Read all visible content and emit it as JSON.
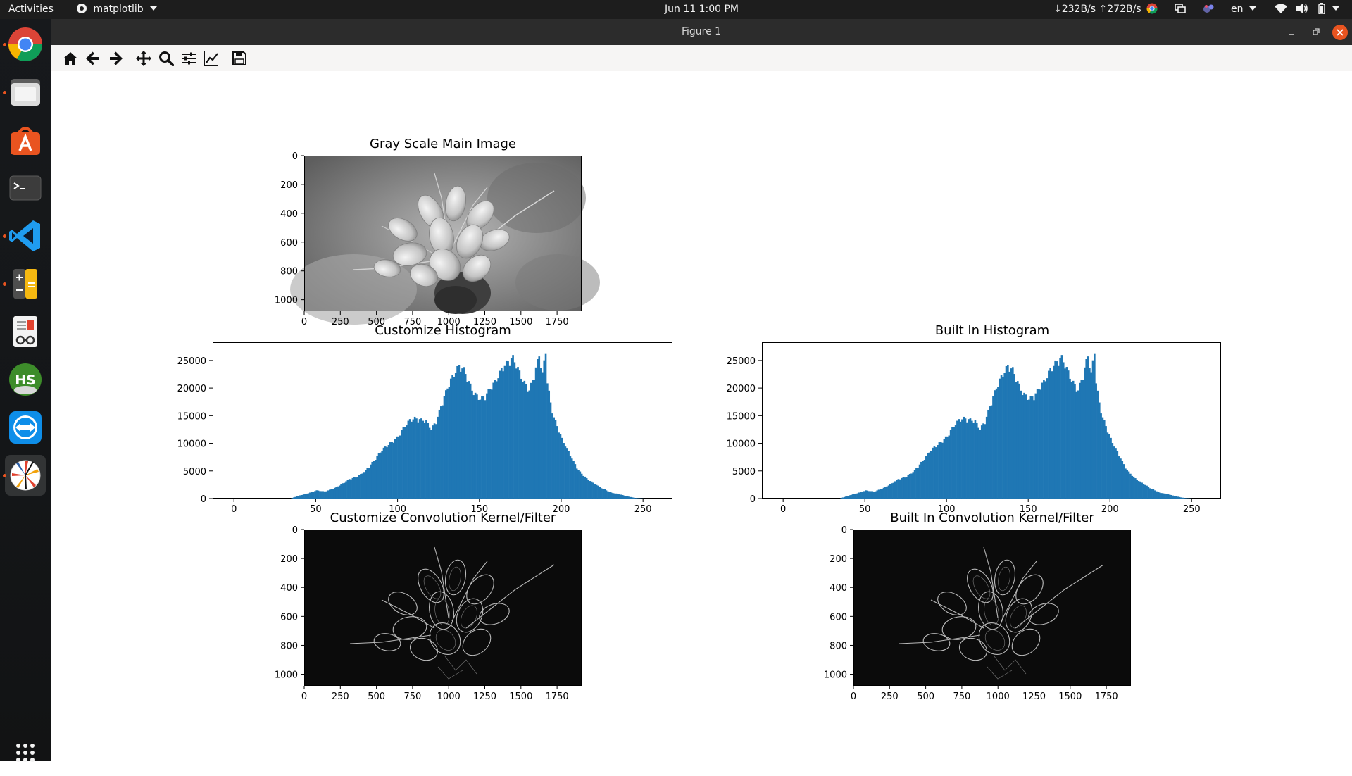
{
  "topbar": {
    "activities": "Activities",
    "app_menu": "matplotlib",
    "clock": "Jun 11  1:00 PM",
    "net_speed": "↓232B/s ↑272B/s",
    "language": "en"
  },
  "window": {
    "title": "Figure 1"
  },
  "toolbar": {
    "buttons": [
      "home-icon",
      "back-arrow-icon",
      "forward-arrow-icon",
      "pan-icon",
      "zoom-icon",
      "subplots-icon",
      "edit-axes-icon",
      "save-icon"
    ]
  },
  "dock": {
    "apps": [
      "Google Chrome",
      "Files",
      "Ubuntu Software",
      "Terminal",
      "Visual Studio Code",
      "Calculator",
      "Document Viewer",
      "HeidiSQL",
      "TeamViewer",
      "Python"
    ]
  },
  "colors": {
    "hist_bar": "#1f77b4",
    "topbar_bg": "#1d1d1d",
    "titlebar_bg": "#2c2c2c",
    "close_button": "#e95420"
  },
  "figure": {
    "main_title": "Gray Scale Main Image",
    "hist_custom_title": "Customize Histogram",
    "hist_builtin_title": "Built In Histogram",
    "conv_custom_title": "Customize Convolution Kernel/Filter",
    "conv_builtin_title": "Built In Convolution Kernel/Filter"
  },
  "chart_data": [
    {
      "type": "heatmap",
      "title": "Gray Scale Main Image",
      "x_ticks": [
        "0",
        "250",
        "500",
        "750",
        "1000",
        "1250",
        "1500",
        "1750"
      ],
      "y_ticks": [
        "0",
        "200",
        "400",
        "600",
        "800",
        "1000"
      ],
      "xlim": [
        0,
        1920
      ],
      "ylim": [
        1080,
        0
      ]
    },
    {
      "type": "bar",
      "title": "Customize Histogram",
      "x_ticks": [
        "0",
        "50",
        "100",
        "150",
        "200",
        "250"
      ],
      "y_ticks": [
        "0",
        "5000",
        "10000",
        "15000",
        "20000",
        "25000"
      ],
      "xlim": [
        -13,
        268
      ],
      "ylim": [
        0,
        28300
      ],
      "x": [
        35,
        40,
        45,
        50,
        55,
        60,
        65,
        70,
        75,
        80,
        85,
        90,
        95,
        100,
        103,
        107,
        110,
        113,
        117,
        120,
        123,
        126,
        130,
        133,
        137,
        140,
        143,
        146,
        150,
        153,
        156,
        160,
        163,
        166,
        170,
        173,
        176,
        180,
        183,
        186,
        188,
        190,
        191,
        193,
        195,
        200,
        205,
        210,
        215,
        220,
        225,
        230,
        235,
        240,
        245,
        250
      ],
      "values": [
        100,
        600,
        1000,
        1500,
        1300,
        1800,
        2600,
        3600,
        4000,
        5200,
        7000,
        9000,
        10200,
        11500,
        13000,
        14500,
        14800,
        14600,
        14300,
        12800,
        14200,
        17000,
        20500,
        22500,
        24500,
        23800,
        21500,
        19500,
        18400,
        18900,
        20300,
        22000,
        23800,
        25000,
        26000,
        24000,
        21800,
        20000,
        22800,
        26500,
        23000,
        27300,
        21500,
        17600,
        15000,
        11000,
        8000,
        5200,
        3700,
        2700,
        1800,
        1100,
        800,
        400,
        100,
        0
      ]
    },
    {
      "type": "bar",
      "title": "Built In Histogram",
      "x_ticks": [
        "0",
        "50",
        "100",
        "150",
        "200",
        "250"
      ],
      "y_ticks": [
        "0",
        "5000",
        "10000",
        "15000",
        "20000",
        "25000"
      ],
      "xlim": [
        -13,
        268
      ],
      "ylim": [
        0,
        28300
      ],
      "x": [
        35,
        40,
        45,
        50,
        55,
        60,
        65,
        70,
        75,
        80,
        85,
        90,
        95,
        100,
        103,
        107,
        110,
        113,
        117,
        120,
        123,
        126,
        130,
        133,
        137,
        140,
        143,
        146,
        150,
        153,
        156,
        160,
        163,
        166,
        170,
        173,
        176,
        180,
        183,
        186,
        188,
        190,
        191,
        193,
        195,
        200,
        205,
        210,
        215,
        220,
        225,
        230,
        235,
        240,
        245,
        250
      ],
      "values": [
        100,
        600,
        1000,
        1500,
        1300,
        1800,
        2600,
        3600,
        4000,
        5200,
        7000,
        9000,
        10200,
        11500,
        13000,
        14500,
        14800,
        14600,
        14300,
        12800,
        14200,
        17000,
        20500,
        22500,
        24500,
        23800,
        21500,
        19500,
        18400,
        18900,
        20300,
        22000,
        23800,
        25000,
        26000,
        24000,
        21800,
        20000,
        22800,
        26500,
        23000,
        27300,
        21500,
        17600,
        15000,
        11000,
        8000,
        5200,
        3700,
        2700,
        1800,
        1100,
        800,
        400,
        100,
        0
      ]
    },
    {
      "type": "heatmap",
      "title": "Customize Convolution Kernel/Filter",
      "x_ticks": [
        "0",
        "250",
        "500",
        "750",
        "1000",
        "1250",
        "1500",
        "1750"
      ],
      "y_ticks": [
        "0",
        "200",
        "400",
        "600",
        "800",
        "1000"
      ],
      "xlim": [
        0,
        1920
      ],
      "ylim": [
        1080,
        0
      ]
    },
    {
      "type": "heatmap",
      "title": "Built In Convolution Kernel/Filter",
      "x_ticks": [
        "0",
        "250",
        "500",
        "750",
        "1000",
        "1250",
        "1500",
        "1750"
      ],
      "y_ticks": [
        "0",
        "200",
        "400",
        "600",
        "800",
        "1000"
      ],
      "xlim": [
        0,
        1920
      ],
      "ylim": [
        1080,
        0
      ]
    }
  ]
}
